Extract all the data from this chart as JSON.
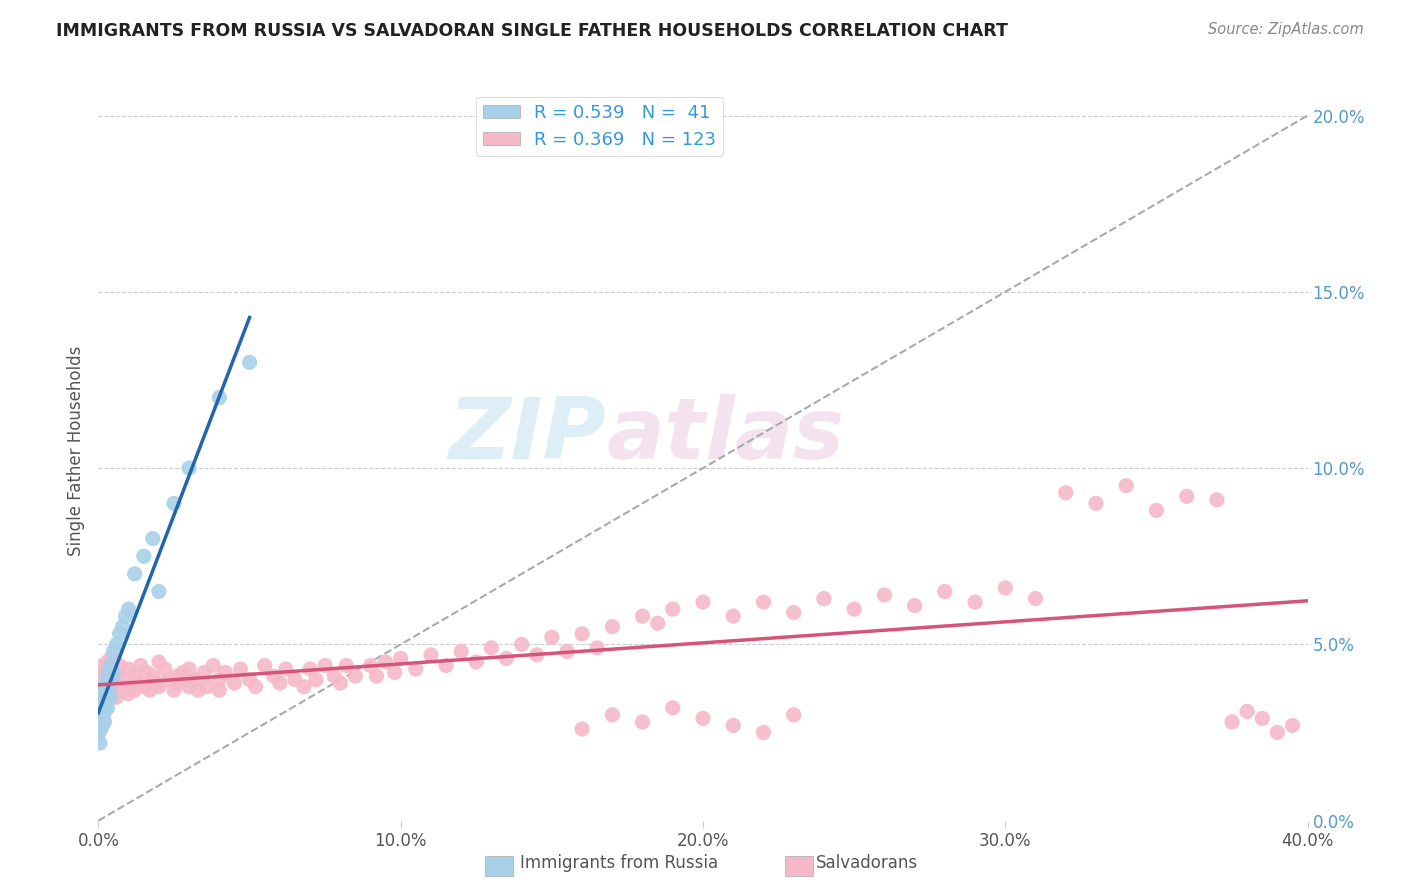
{
  "title": "IMMIGRANTS FROM RUSSIA VS SALVADORAN SINGLE FATHER HOUSEHOLDS CORRELATION CHART",
  "source": "Source: ZipAtlas.com",
  "ylabel": "Single Father Households",
  "legend_labels": [
    "Immigrants from Russia",
    "Salvadorans"
  ],
  "legend_R": [
    0.539,
    0.369
  ],
  "legend_N": [
    41,
    123
  ],
  "blue_color": "#a8d0e8",
  "pink_color": "#f5b8c8",
  "blue_line_color": "#2166ac",
  "pink_line_color": "#d6537a",
  "ref_line_color": "#aaaaaa",
  "watermark_zip": "ZIP",
  "watermark_atlas": "atlas",
  "xlim": [
    0.0,
    0.4
  ],
  "ylim": [
    0.0,
    0.21
  ],
  "x_ticks": [
    0.0,
    0.1,
    0.2,
    0.3,
    0.4
  ],
  "x_tick_labels": [
    "0.0%",
    "10.0%",
    "20.0%",
    "30.0%",
    "40.0%"
  ],
  "y_ticks_right": [
    0.0,
    0.05,
    0.1,
    0.15,
    0.2
  ],
  "y_tick_labels_right": [
    "0.0%",
    "5.0%",
    "10.0%",
    "15.0%",
    "20.0%"
  ],
  "blue_scatter_x": [
    0.0002,
    0.0003,
    0.0004,
    0.0005,
    0.0006,
    0.0007,
    0.0008,
    0.0009,
    0.001,
    0.0012,
    0.0014,
    0.0015,
    0.0016,
    0.0018,
    0.002,
    0.002,
    0.0022,
    0.0025,
    0.0028,
    0.003,
    0.003,
    0.0032,
    0.0035,
    0.004,
    0.004,
    0.0045,
    0.005,
    0.005,
    0.006,
    0.007,
    0.008,
    0.009,
    0.01,
    0.012,
    0.015,
    0.018,
    0.02,
    0.025,
    0.03,
    0.04,
    0.05
  ],
  "blue_scatter_y": [
    0.025,
    0.028,
    0.03,
    0.022,
    0.032,
    0.026,
    0.035,
    0.029,
    0.031,
    0.033,
    0.027,
    0.036,
    0.029,
    0.034,
    0.028,
    0.038,
    0.031,
    0.033,
    0.04,
    0.032,
    0.036,
    0.042,
    0.038,
    0.035,
    0.044,
    0.04,
    0.042,
    0.048,
    0.05,
    0.053,
    0.055,
    0.058,
    0.06,
    0.07,
    0.075,
    0.08,
    0.065,
    0.09,
    0.1,
    0.12,
    0.13
  ],
  "pink_scatter_x": [
    0.0002,
    0.0004,
    0.0006,
    0.0008,
    0.001,
    0.0012,
    0.0014,
    0.0016,
    0.0018,
    0.002,
    0.0022,
    0.0025,
    0.003,
    0.003,
    0.0035,
    0.004,
    0.004,
    0.005,
    0.005,
    0.006,
    0.006,
    0.007,
    0.008,
    0.009,
    0.01,
    0.01,
    0.012,
    0.012,
    0.013,
    0.014,
    0.015,
    0.016,
    0.017,
    0.018,
    0.019,
    0.02,
    0.02,
    0.022,
    0.023,
    0.025,
    0.026,
    0.027,
    0.028,
    0.03,
    0.03,
    0.032,
    0.033,
    0.035,
    0.036,
    0.038,
    0.04,
    0.04,
    0.042,
    0.045,
    0.047,
    0.05,
    0.052,
    0.055,
    0.058,
    0.06,
    0.062,
    0.065,
    0.068,
    0.07,
    0.072,
    0.075,
    0.078,
    0.08,
    0.082,
    0.085,
    0.09,
    0.092,
    0.095,
    0.098,
    0.1,
    0.105,
    0.11,
    0.115,
    0.12,
    0.125,
    0.13,
    0.135,
    0.14,
    0.145,
    0.15,
    0.155,
    0.16,
    0.165,
    0.17,
    0.18,
    0.185,
    0.19,
    0.2,
    0.21,
    0.22,
    0.23,
    0.24,
    0.25,
    0.26,
    0.27,
    0.28,
    0.29,
    0.3,
    0.31,
    0.32,
    0.33,
    0.34,
    0.35,
    0.36,
    0.37,
    0.375,
    0.38,
    0.385,
    0.39,
    0.395,
    0.16,
    0.17,
    0.18,
    0.19,
    0.2,
    0.21,
    0.22,
    0.23
  ],
  "pink_scatter_y": [
    0.038,
    0.032,
    0.04,
    0.036,
    0.042,
    0.035,
    0.044,
    0.038,
    0.041,
    0.036,
    0.039,
    0.043,
    0.037,
    0.045,
    0.04,
    0.038,
    0.046,
    0.042,
    0.039,
    0.041,
    0.035,
    0.044,
    0.038,
    0.04,
    0.036,
    0.043,
    0.037,
    0.041,
    0.039,
    0.044,
    0.038,
    0.042,
    0.037,
    0.041,
    0.039,
    0.045,
    0.038,
    0.043,
    0.04,
    0.037,
    0.041,
    0.039,
    0.042,
    0.038,
    0.043,
    0.04,
    0.037,
    0.042,
    0.038,
    0.044,
    0.04,
    0.037,
    0.042,
    0.039,
    0.043,
    0.04,
    0.038,
    0.044,
    0.041,
    0.039,
    0.043,
    0.04,
    0.038,
    0.043,
    0.04,
    0.044,
    0.041,
    0.039,
    0.044,
    0.041,
    0.044,
    0.041,
    0.045,
    0.042,
    0.046,
    0.043,
    0.047,
    0.044,
    0.048,
    0.045,
    0.049,
    0.046,
    0.05,
    0.047,
    0.052,
    0.048,
    0.053,
    0.049,
    0.055,
    0.058,
    0.056,
    0.06,
    0.062,
    0.058,
    0.062,
    0.059,
    0.063,
    0.06,
    0.064,
    0.061,
    0.065,
    0.062,
    0.066,
    0.063,
    0.093,
    0.09,
    0.095,
    0.088,
    0.092,
    0.091,
    0.028,
    0.031,
    0.029,
    0.025,
    0.027,
    0.026,
    0.03,
    0.028,
    0.032,
    0.029,
    0.027,
    0.025,
    0.03
  ]
}
